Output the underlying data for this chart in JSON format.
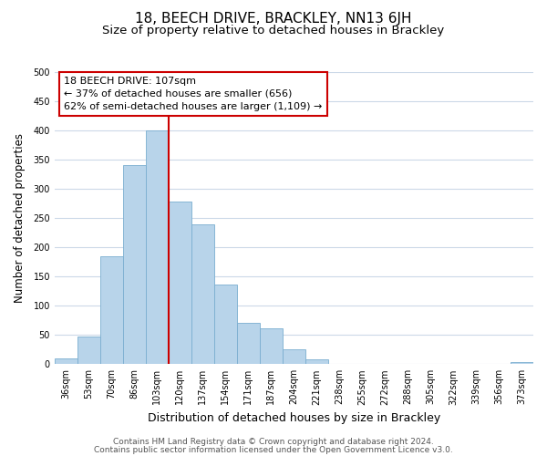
{
  "title": "18, BEECH DRIVE, BRACKLEY, NN13 6JH",
  "subtitle": "Size of property relative to detached houses in Brackley",
  "xlabel": "Distribution of detached houses by size in Brackley",
  "ylabel": "Number of detached properties",
  "bar_labels": [
    "36sqm",
    "53sqm",
    "70sqm",
    "86sqm",
    "103sqm",
    "120sqm",
    "137sqm",
    "154sqm",
    "171sqm",
    "187sqm",
    "204sqm",
    "221sqm",
    "238sqm",
    "255sqm",
    "272sqm",
    "288sqm",
    "305sqm",
    "322sqm",
    "339sqm",
    "356sqm",
    "373sqm"
  ],
  "bar_heights": [
    10,
    47,
    185,
    340,
    400,
    278,
    240,
    136,
    70,
    62,
    26,
    8,
    0,
    0,
    0,
    0,
    0,
    0,
    0,
    0,
    3
  ],
  "bar_color": "#b8d4ea",
  "bar_edge_color": "#7aaed0",
  "vline_x_index": 4,
  "vline_color": "#cc0000",
  "annotation_line1": "18 BEECH DRIVE: 107sqm",
  "annotation_line2": "← 37% of detached houses are smaller (656)",
  "annotation_line3": "62% of semi-detached houses are larger (1,109) →",
  "annotation_box_color": "#ffffff",
  "annotation_box_edge": "#cc0000",
  "ylim": [
    0,
    500
  ],
  "yticks": [
    0,
    50,
    100,
    150,
    200,
    250,
    300,
    350,
    400,
    450,
    500
  ],
  "footer_line1": "Contains HM Land Registry data © Crown copyright and database right 2024.",
  "footer_line2": "Contains public sector information licensed under the Open Government Licence v3.0.",
  "background_color": "#ffffff",
  "grid_color": "#ccd9e8",
  "title_fontsize": 11,
  "subtitle_fontsize": 9.5,
  "xlabel_fontsize": 9,
  "ylabel_fontsize": 8.5,
  "tick_fontsize": 7,
  "footer_fontsize": 6.5,
  "annotation_fontsize": 8
}
